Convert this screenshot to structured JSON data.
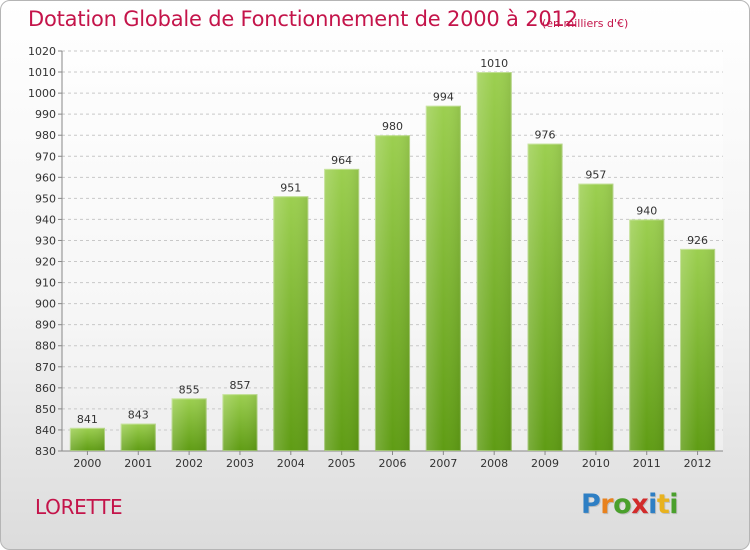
{
  "chart_data": {
    "type": "bar",
    "title": "Dotation Globale de Fonctionnement de 2000 à 2012",
    "unit": "(en milliers d'€)",
    "categories": [
      "2000",
      "2001",
      "2002",
      "2003",
      "2004",
      "2005",
      "2006",
      "2007",
      "2008",
      "2009",
      "2010",
      "2011",
      "2012"
    ],
    "values": [
      841,
      843,
      855,
      857,
      951,
      964,
      980,
      994,
      1010,
      976,
      957,
      940,
      926
    ],
    "ylim": [
      830,
      1020
    ],
    "ytick_step": 10,
    "grid": true,
    "bar_color_top": "#9ccf50",
    "bar_color_bottom": "#5f9c14"
  },
  "footer": {
    "commune": "LORETTE",
    "logo_letters": [
      {
        "ch": "P",
        "color": "#2e7fc4"
      },
      {
        "ch": "r",
        "color": "#e8821e"
      },
      {
        "ch": "o",
        "color": "#4aa02c"
      },
      {
        "ch": "x",
        "color": "#d22b2b"
      },
      {
        "ch": "i",
        "color": "#2e7fc4"
      },
      {
        "ch": "t",
        "color": "#e8b21e"
      },
      {
        "ch": "i",
        "color": "#4aa02c"
      }
    ]
  }
}
